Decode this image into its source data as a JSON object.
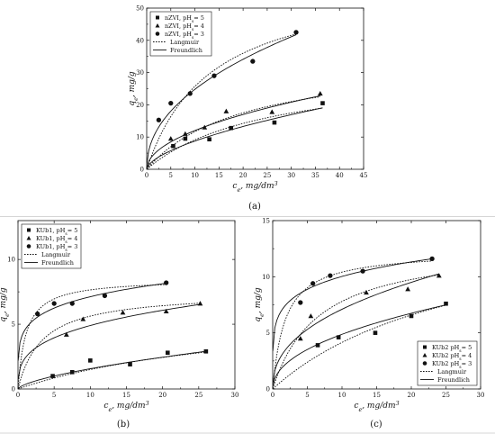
{
  "chart_data": [
    {
      "id": "a",
      "type": "scatter",
      "panel_label": "(a)",
      "xlabel": "c_e, mg/dm^3",
      "ylabel": "q_e, mg/g",
      "xlim": [
        0,
        45
      ],
      "ylim": [
        0,
        50
      ],
      "xticks": [
        0,
        5,
        10,
        15,
        20,
        25,
        30,
        35,
        40,
        45
      ],
      "yticks": [
        0,
        10,
        20,
        30,
        40,
        50
      ],
      "legend_position": "top-left",
      "series": [
        {
          "name": "nZVI, pH_s= 5",
          "marker": "square",
          "x": [
            5.5,
            8.0,
            13.0,
            17.5,
            26.5,
            36.5
          ],
          "y": [
            7.2,
            9.5,
            9.3,
            12.8,
            14.5,
            20.5
          ]
        },
        {
          "name": "nZVI, pH_s= 4",
          "marker": "triangle",
          "x": [
            5.0,
            8.0,
            12.0,
            16.5,
            26.0,
            36.0
          ],
          "y": [
            9.5,
            11.0,
            13.0,
            18.0,
            17.8,
            23.5
          ]
        },
        {
          "name": "nZVI, pH_s= 3",
          "marker": "circle",
          "x": [
            2.5,
            5.0,
            9.0,
            14.0,
            22.0,
            31.0
          ],
          "y": [
            15.3,
            20.5,
            23.5,
            29.0,
            33.5,
            42.5
          ]
        }
      ],
      "models": [
        {
          "name": "Langmuir",
          "style": "dotted",
          "curves": [
            {
              "type": "langmuir",
              "qm": 32,
              "K": 0.04
            },
            {
              "type": "langmuir",
              "qm": 35,
              "K": 0.05
            },
            {
              "type": "langmuir",
              "qm": 60,
              "K": 0.075
            }
          ]
        },
        {
          "name": "Freundlich",
          "style": "solid",
          "curves": [
            {
              "type": "freundlich",
              "K": 2.2,
              "n": 0.6
            },
            {
              "type": "freundlich",
              "K": 3.8,
              "n": 0.5
            },
            {
              "type": "freundlich",
              "K": 8.6,
              "n": 0.46
            }
          ]
        }
      ]
    },
    {
      "id": "b",
      "type": "scatter",
      "panel_label": "(b)",
      "xlabel": "c_e, mg/dm^3",
      "ylabel": "q_e, mg/g",
      "xlim": [
        0,
        30
      ],
      "ylim": [
        0,
        13
      ],
      "xticks": [
        0,
        5,
        10,
        15,
        20,
        25,
        30
      ],
      "yticks": [
        0,
        5,
        10
      ],
      "legend_position": "top-left",
      "series": [
        {
          "name": "KUb1, pH_s= 5",
          "marker": "square",
          "x": [
            4.8,
            7.5,
            10.0,
            15.5,
            20.7,
            26.0
          ],
          "y": [
            1.0,
            1.3,
            2.2,
            1.9,
            2.8,
            2.9
          ]
        },
        {
          "name": "KUb1, pH_s= 4",
          "marker": "triangle",
          "x": [
            6.7,
            9.0,
            14.5,
            20.5,
            25.2
          ],
          "y": [
            4.2,
            5.4,
            5.9,
            6.0,
            6.6
          ]
        },
        {
          "name": "KUb1, pH_s= 3",
          "marker": "circle",
          "x": [
            2.7,
            5.0,
            7.5,
            12.0,
            20.5
          ],
          "y": [
            5.8,
            6.6,
            6.6,
            7.2,
            8.2
          ]
        }
      ],
      "models": [
        {
          "name": "Langmuir",
          "style": "dotted",
          "curves": [
            {
              "type": "langmuir",
              "qm": 6.5,
              "K": 0.03
            },
            {
              "type": "langmuir",
              "qm": 7.5,
              "K": 0.3
            },
            {
              "type": "langmuir",
              "qm": 8.5,
              "K": 0.9
            }
          ]
        },
        {
          "name": "Freundlich",
          "style": "solid",
          "curves": [
            {
              "type": "freundlich",
              "K": 0.35,
              "n": 0.65
            },
            {
              "type": "freundlich",
              "K": 2.4,
              "n": 0.31
            },
            {
              "type": "freundlich",
              "K": 4.6,
              "n": 0.19
            }
          ]
        }
      ]
    },
    {
      "id": "c",
      "type": "scatter",
      "panel_label": "(c)",
      "xlabel": "c_e, mg/dm^3",
      "ylabel": "q_e, mg/g",
      "xlim": [
        0,
        30
      ],
      "ylim": [
        0,
        15
      ],
      "xticks": [
        0,
        5,
        10,
        15,
        20,
        25,
        30
      ],
      "yticks": [
        0,
        5,
        10,
        15
      ],
      "legend_position": "bottom-right",
      "series": [
        {
          "name": "KUb2 pH_s= 5",
          "marker": "square",
          "x": [
            6.5,
            9.5,
            14.8,
            20.0,
            25.0
          ],
          "y": [
            3.9,
            4.6,
            5.0,
            6.5,
            7.6
          ]
        },
        {
          "name": "KUb2 pH_s= 4",
          "marker": "triangle",
          "x": [
            4.0,
            5.5,
            13.5,
            19.5,
            24.0
          ],
          "y": [
            4.5,
            6.5,
            8.6,
            8.9,
            10.1
          ]
        },
        {
          "name": "KUb2 pH_s= 3",
          "marker": "circle",
          "x": [
            4.0,
            5.8,
            8.3,
            13.0,
            23.0
          ],
          "y": [
            7.7,
            9.4,
            10.1,
            10.5,
            11.6
          ]
        }
      ],
      "models": [
        {
          "name": "Langmuir",
          "style": "dotted",
          "curves": [
            {
              "type": "langmuir",
              "qm": 16,
              "K": 0.035
            },
            {
              "type": "langmuir",
              "qm": 13,
              "K": 0.15
            },
            {
              "type": "langmuir",
              "qm": 12.3,
              "K": 0.55
            }
          ]
        },
        {
          "name": "Freundlich",
          "style": "solid",
          "curves": [
            {
              "type": "freundlich",
              "K": 1.65,
              "n": 0.47
            },
            {
              "type": "freundlich",
              "K": 2.7,
              "n": 0.42
            },
            {
              "type": "freundlich",
              "K": 6.7,
              "n": 0.175
            }
          ]
        }
      ]
    }
  ]
}
